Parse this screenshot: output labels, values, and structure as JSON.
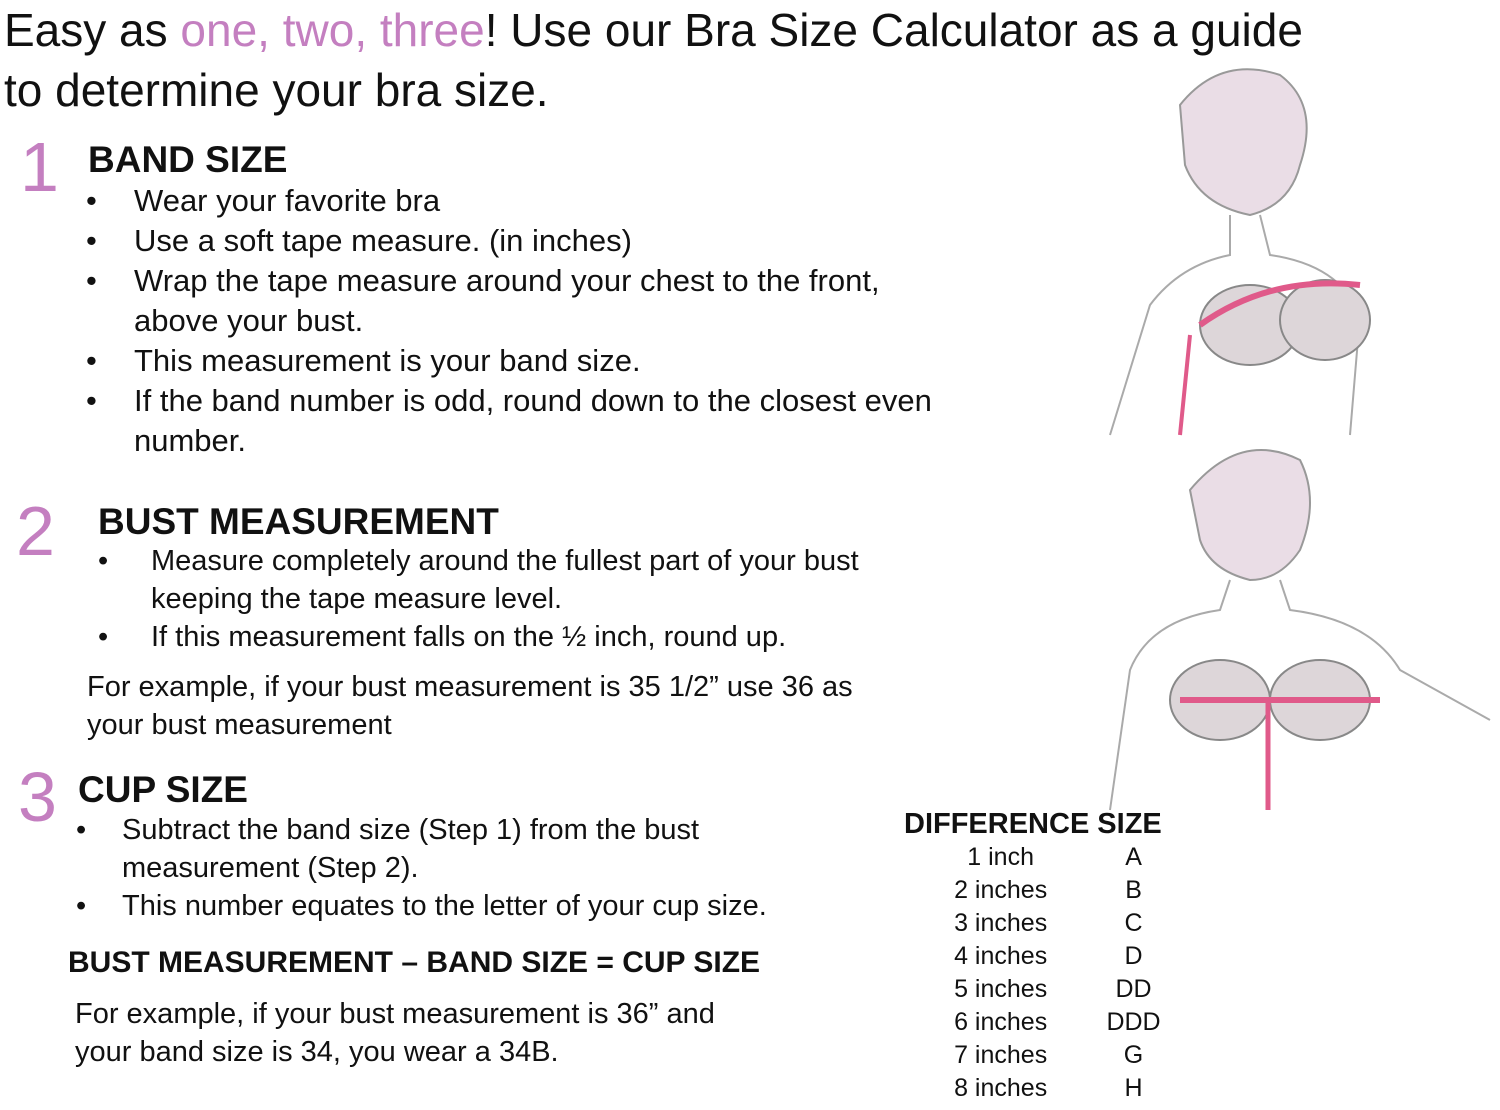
{
  "title": {
    "pre": "Easy as ",
    "accent": "one, two, three",
    "post": "! Use our Bra Size Calculator as a guide to determine your bra size."
  },
  "accent_color": "#c47fc0",
  "steps": [
    {
      "number": "1",
      "heading": "BAND SIZE",
      "bullets": [
        "Wear your favorite bra",
        "Use a soft tape measure. (in inches)",
        "Wrap the tape measure around your chest to the front, above your bust.",
        "This measurement is your band size.",
        "If the band number is odd, round down to the closest even number."
      ]
    },
    {
      "number": "2",
      "heading": "BUST MEASUREMENT",
      "bullets": [
        "Measure completely around the fullest part of your bust keeping the tape measure level.",
        "If this measurement falls on the ½ inch, round up."
      ],
      "example": "For example, if your bust measurement is 35 1/2” use 36 as your bust measurement"
    },
    {
      "number": "3",
      "heading": "CUP SIZE",
      "bullets": [
        "Subtract the band size (Step 1) from the bust measurement (Step 2).",
        "This number equates to the letter of your cup size."
      ],
      "formula": "BUST MEASUREMENT – BAND SIZE = CUP SIZE",
      "example": "For example, if your bust measurement is 36” and your band size is 34, you wear a 34B."
    }
  ],
  "bullet": "•",
  "table": {
    "headers": [
      "DIFFERENCE",
      "SIZE"
    ],
    "rows": [
      [
        "1 inch",
        "A"
      ],
      [
        "2 inches",
        "B"
      ],
      [
        "3 inches",
        "C"
      ],
      [
        "4 inches",
        "D"
      ],
      [
        "5 inches",
        "DD"
      ],
      [
        "6 inches",
        "DDD"
      ],
      [
        "7 inches",
        "G"
      ],
      [
        "8 inches",
        "H"
      ]
    ]
  },
  "illustrations": [
    "woman-measuring-band-illustration",
    "woman-measuring-bust-illustration"
  ]
}
